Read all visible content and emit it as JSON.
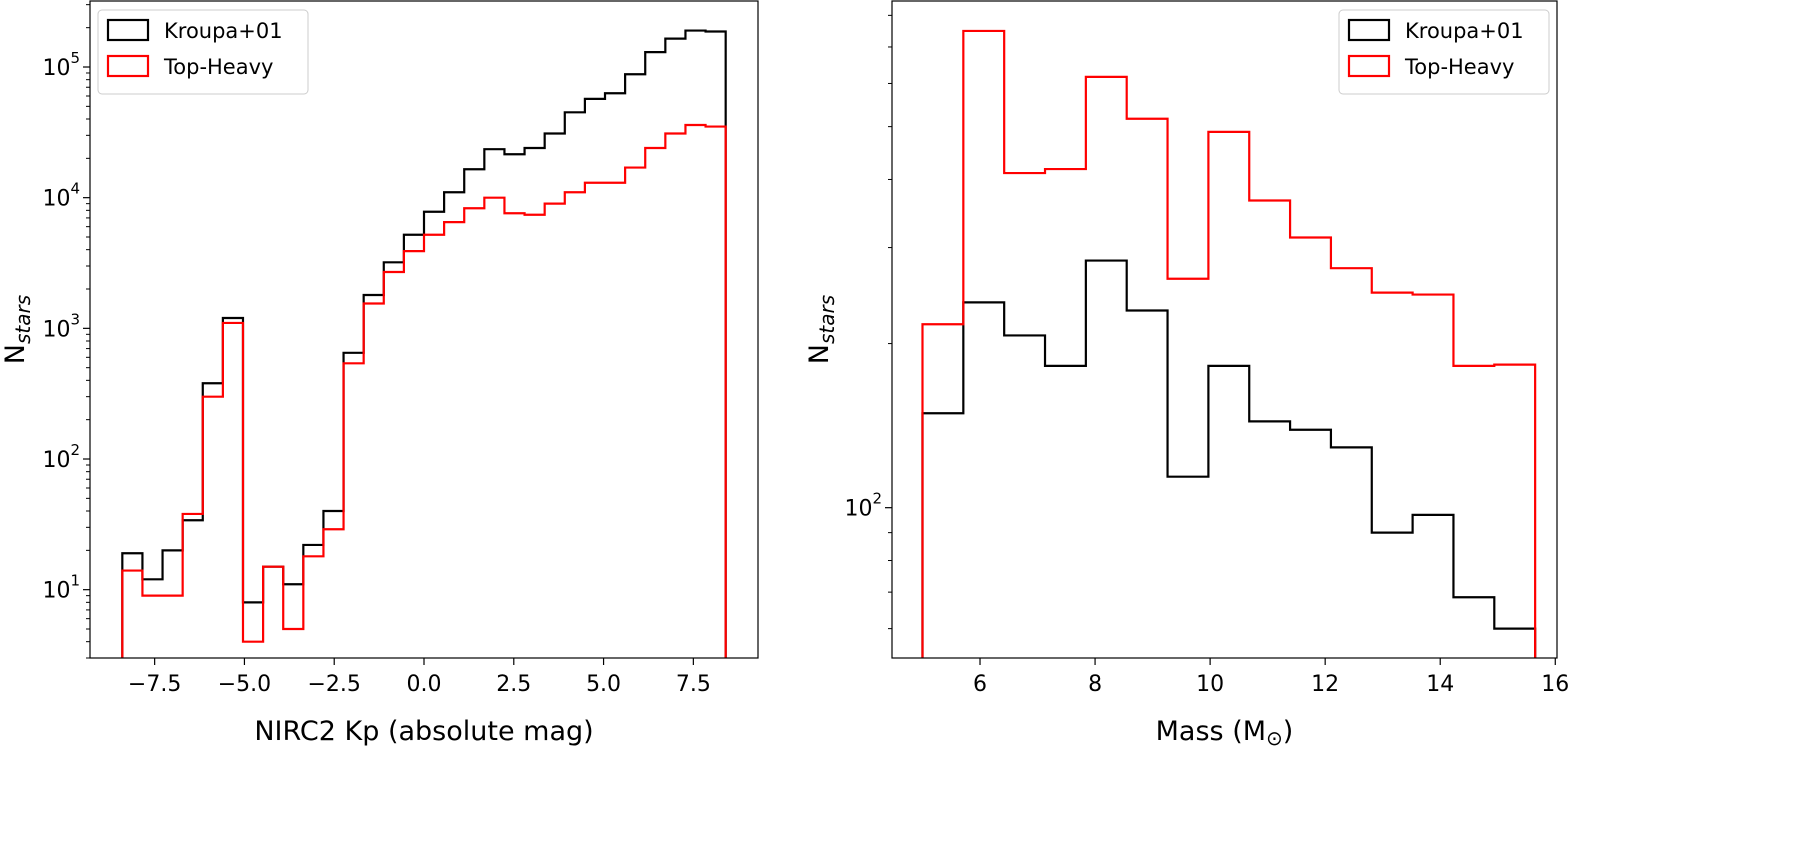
{
  "chart_data": [
    {
      "type": "histogram-step",
      "title": "",
      "xlabel": "NIRC2 Kp (absolute mag)",
      "ylabel_main": "N",
      "ylabel_sub": "stars",
      "yscale": "log",
      "xlim": [
        -9.3,
        9.3
      ],
      "ylim": [
        3.0,
        320000
      ],
      "xticks": [
        -7.5,
        -5.0,
        -2.5,
        0.0,
        2.5,
        5.0,
        7.5
      ],
      "xtick_labels": [
        "−7.5",
        "−5.0",
        "−2.5",
        "0.0",
        "2.5",
        "5.0",
        "7.5"
      ],
      "yticks_exp": [
        1,
        2,
        3,
        4,
        5
      ],
      "ytick_base": "10",
      "legend_position": "top-left",
      "bin_edges_start": -8.4,
      "bin_width": 0.56,
      "series": [
        {
          "name": "Kroupa+01",
          "color": "#000000",
          "values": [
            19,
            12,
            20,
            34,
            380,
            1200,
            8,
            15,
            11,
            22,
            40,
            650,
            1800,
            3200,
            5200,
            7800,
            11000,
            16500,
            23500,
            21500,
            24000,
            31000,
            45000,
            57000,
            63000,
            88000,
            130000,
            165000,
            190000,
            187000
          ]
        },
        {
          "name": "Top-Heavy",
          "color": "#ff0000",
          "values": [
            14,
            9,
            9,
            38,
            300,
            1100,
            4,
            15,
            5,
            18,
            29,
            540,
            1550,
            2700,
            3900,
            5200,
            6500,
            8300,
            10000,
            7600,
            7400,
            9000,
            11000,
            13000,
            13000,
            17000,
            24000,
            31000,
            36000,
            35000
          ]
        }
      ]
    },
    {
      "type": "histogram-step",
      "title": "",
      "xlabel": "Mass (M",
      "xlabel_symbol": "⊙",
      "xlabel_end": ")",
      "ylabel_main": "N",
      "ylabel_sub": "stars",
      "yscale": "log",
      "xlim": [
        4.47,
        16.03
      ],
      "ylim": [
        53,
        850
      ],
      "xticks": [
        6,
        8,
        10,
        12,
        14,
        16
      ],
      "xtick_labels": [
        "6",
        "8",
        "10",
        "12",
        "14",
        "16"
      ],
      "yticks_exp": [
        2
      ],
      "ytick_base": "10",
      "legend_position": "top-right",
      "bin_edges_start": 5.0,
      "bin_width": 0.71,
      "series": [
        {
          "name": "Kroupa+01",
          "color": "#000000",
          "values": [
            149,
            238,
            207,
            182,
            284,
            230,
            114,
            182,
            144,
            139,
            129,
            90,
            97,
            68.5,
            60
          ]
        },
        {
          "name": "Top-Heavy",
          "color": "#ff0000",
          "values": [
            217,
            749,
            411,
            418,
            617,
            517,
            263,
            489,
            366,
            313,
            275,
            248,
            246,
            182,
            183
          ]
        }
      ]
    }
  ]
}
